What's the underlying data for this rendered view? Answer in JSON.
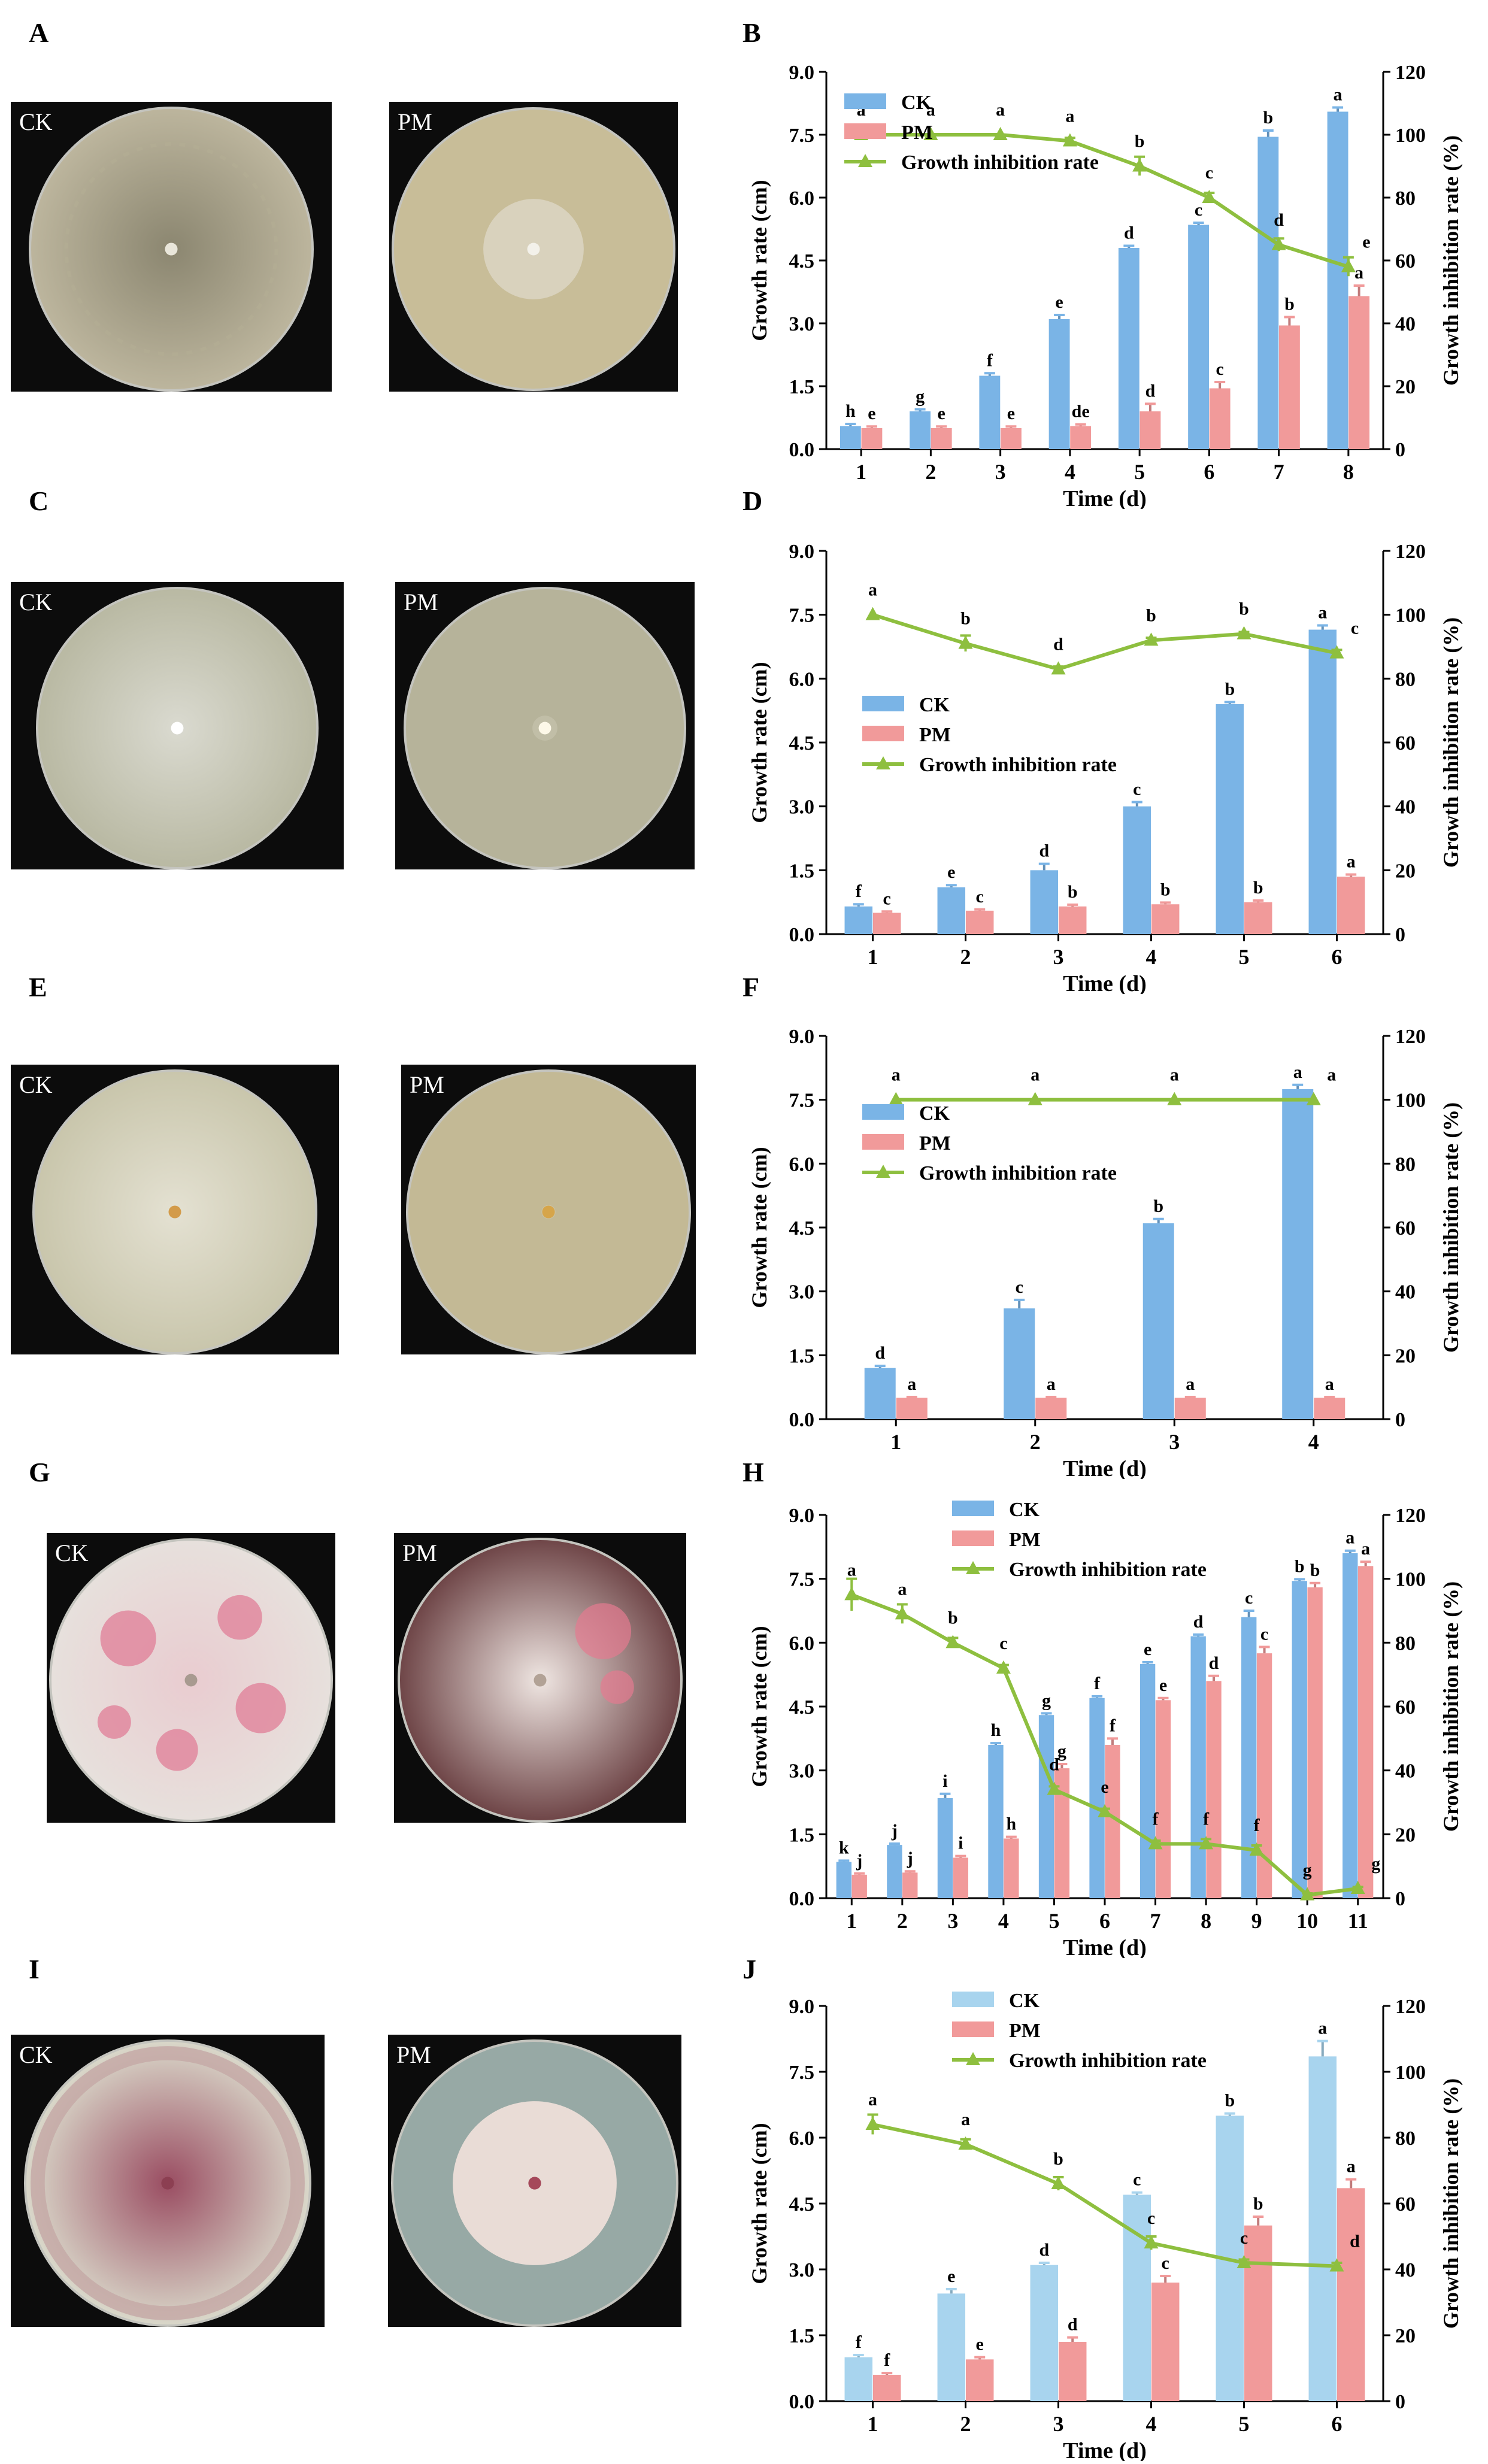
{
  "rows": [
    {
      "photo_letter": "A",
      "chart_letter": "B",
      "ck_label": "CK",
      "pm_label": "PM",
      "ck_colors": {
        "outer": "#bcb59d",
        "inner": "#8b8670",
        "accent": "#b3ad93",
        "center": "#e9e6da"
      },
      "pm_colors": {
        "outer": "#c8bd98",
        "inner": "#d9d2bd",
        "accent": "#c6bc9b",
        "center": "#f3f1ea"
      },
      "pm_colony_fraction": 0.36,
      "legend_pos": "top-left"
    },
    {
      "photo_letter": "C",
      "chart_letter": "D",
      "ck_label": "CK",
      "pm_label": "PM",
      "ck_colors": {
        "outer": "#b9b9a3",
        "inner": "#dadad0",
        "accent": "#c7c7b8",
        "center": "#ffffff"
      },
      "pm_colors": {
        "outer": "#b6b39a",
        "inner": "#c1bea7",
        "accent": "#bbb8a0",
        "center": "#fdf8e8"
      },
      "pm_colony_fraction": 0.09,
      "legend_pos": "middle-left"
    },
    {
      "photo_letter": "E",
      "chart_letter": "F",
      "ck_label": "CK",
      "pm_label": "PM",
      "ck_colors": {
        "outer": "#c9c6ac",
        "inner": "#e4e1d2",
        "accent": "#bdb9a3",
        "center": "#d39b4a"
      },
      "pm_colors": {
        "outer": "#c3b995",
        "inner": "#cbc2a2",
        "accent": "#c7bd9c",
        "center": "#d6a54a"
      },
      "pm_colony_fraction": 0.05,
      "legend_pos": "top-left"
    },
    {
      "photo_letter": "G",
      "chart_letter": "H",
      "ck_label": "CK",
      "pm_label": "PM",
      "ck_colors": {
        "outer": "#e7e0dc",
        "inner": "#e9ccd0",
        "accent": "#e07893",
        "center": "#a89a90"
      },
      "pm_colors": {
        "outer": "#6f4648",
        "inner": "#efe6e2",
        "accent": "#e47b90",
        "center": "#b2a296"
      },
      "pm_colony_fraction": 0.92,
      "legend_pos": "top-center"
    },
    {
      "photo_letter": "I",
      "chart_letter": "J",
      "ck_label": "CK",
      "pm_label": "PM",
      "ck_colors": {
        "outer": "#d9d7c9",
        "inner": "#9a4d62",
        "accent": "#c4a7a5",
        "center": "#8c3f52"
      },
      "pm_colors": {
        "outer": "#97a9a5",
        "inner": "#e9dcd6",
        "accent": "#d4bfbb",
        "center": "#a5485a"
      },
      "pm_colony_fraction": 0.58,
      "legend_pos": "top-center"
    }
  ],
  "chart_data": [
    {
      "id": "B",
      "type": "bar",
      "categories": [
        "1",
        "2",
        "3",
        "4",
        "5",
        "6",
        "7",
        "8"
      ],
      "xlabel": "Time (d)",
      "ylabel": "Growth rate (cm)",
      "y2label": "Growth inhibition rate (%)",
      "ylim": [
        0,
        9
      ],
      "yticks": [
        "0.0",
        "1.5",
        "3.0",
        "4.5",
        "6.0",
        "7.5",
        "9.0"
      ],
      "y2lim": [
        0,
        120
      ],
      "y2ticks": [
        "0",
        "20",
        "40",
        "60",
        "80",
        "100",
        "120"
      ],
      "series": [
        {
          "name": "CK",
          "color": "#7ab4e6",
          "values": [
            0.55,
            0.9,
            1.75,
            3.1,
            4.8,
            5.35,
            7.45,
            8.05
          ],
          "errors": [
            0.05,
            0.05,
            0.06,
            0.1,
            0.05,
            0.05,
            0.15,
            0.1
          ],
          "letters": [
            "h",
            "g",
            "f",
            "e",
            "d",
            "c",
            "b",
            "a"
          ]
        },
        {
          "name": "PM",
          "color": "#f19a9a",
          "values": [
            0.5,
            0.5,
            0.5,
            0.55,
            0.9,
            1.45,
            2.95,
            3.65
          ],
          "errors": [
            0.04,
            0.04,
            0.04,
            0.04,
            0.18,
            0.15,
            0.2,
            0.25
          ],
          "letters": [
            "e",
            "e",
            "e",
            "de",
            "d",
            "c",
            "b",
            "a"
          ]
        }
      ],
      "line": {
        "name": "Growth inhibition rate",
        "color": "#8ebf3f",
        "values": [
          100,
          100,
          100,
          98,
          90,
          80,
          65,
          58
        ],
        "errors": [
          0,
          0,
          0,
          1,
          3,
          1.5,
          2,
          3
        ],
        "letters": [
          "a",
          "a",
          "a",
          "a",
          "b",
          "c",
          "d",
          "e"
        ]
      }
    },
    {
      "id": "D",
      "type": "bar",
      "categories": [
        "1",
        "2",
        "3",
        "4",
        "5",
        "6"
      ],
      "xlabel": "Time (d)",
      "ylabel": "Growth rate (cm)",
      "y2label": "Growth inhibition rate (%)",
      "ylim": [
        0,
        9
      ],
      "yticks": [
        "0.0",
        "1.5",
        "3.0",
        "4.5",
        "6.0",
        "7.5",
        "9.0"
      ],
      "y2lim": [
        0,
        120
      ],
      "y2ticks": [
        "0",
        "20",
        "40",
        "60",
        "80",
        "100",
        "120"
      ],
      "series": [
        {
          "name": "CK",
          "color": "#7ab4e6",
          "values": [
            0.65,
            1.1,
            1.5,
            3.0,
            5.4,
            7.15
          ],
          "errors": [
            0.05,
            0.05,
            0.15,
            0.1,
            0.05,
            0.1
          ],
          "letters": [
            "f",
            "e",
            "d",
            "c",
            "b",
            "a"
          ]
        },
        {
          "name": "PM",
          "color": "#f19a9a",
          "values": [
            0.5,
            0.55,
            0.65,
            0.7,
            0.75,
            1.35
          ],
          "errors": [
            0.03,
            0.03,
            0.04,
            0.04,
            0.04,
            0.05
          ],
          "letters": [
            "c",
            "c",
            "b",
            "b",
            "b",
            "a"
          ]
        }
      ],
      "line": {
        "name": "Growth inhibition rate",
        "color": "#8ebf3f",
        "values": [
          100,
          91,
          83,
          92,
          94,
          88
        ],
        "errors": [
          0,
          2.5,
          0.8,
          0.8,
          0.6,
          1
        ],
        "letters": [
          "a",
          "b",
          "d",
          "b",
          "b",
          "c"
        ]
      }
    },
    {
      "id": "F",
      "type": "bar",
      "categories": [
        "1",
        "2",
        "3",
        "4"
      ],
      "xlabel": "Time (d)",
      "ylabel": "Growth rate (cm)",
      "y2label": "Growth inhibition rate (%)",
      "ylim": [
        0,
        9
      ],
      "yticks": [
        "0.0",
        "1.5",
        "3.0",
        "4.5",
        "6.0",
        "7.5",
        "9.0"
      ],
      "y2lim": [
        0,
        120
      ],
      "y2ticks": [
        "0",
        "20",
        "40",
        "60",
        "80",
        "100",
        "120"
      ],
      "series": [
        {
          "name": "CK",
          "color": "#7ab4e6",
          "values": [
            1.2,
            2.6,
            4.6,
            7.75
          ],
          "errors": [
            0.05,
            0.2,
            0.1,
            0.1
          ],
          "letters": [
            "d",
            "c",
            "b",
            "a"
          ]
        },
        {
          "name": "PM",
          "color": "#f19a9a",
          "values": [
            0.5,
            0.5,
            0.5,
            0.5
          ],
          "errors": [
            0.02,
            0.02,
            0.02,
            0.02
          ],
          "letters": [
            "a",
            "a",
            "a",
            "a"
          ]
        }
      ],
      "line": {
        "name": "Growth inhibition rate",
        "color": "#8ebf3f",
        "values": [
          100,
          100,
          100,
          100
        ],
        "errors": [
          0,
          0,
          0,
          0
        ],
        "letters": [
          "a",
          "a",
          "a",
          "a"
        ]
      }
    },
    {
      "id": "H",
      "type": "bar",
      "categories": [
        "1",
        "2",
        "3",
        "4",
        "5",
        "6",
        "7",
        "8",
        "9",
        "10",
        "11"
      ],
      "xlabel": "Time (d)",
      "ylabel": "Growth rate (cm)",
      "y2label": "Growth inhibition rate (%)",
      "ylim": [
        0,
        9
      ],
      "yticks": [
        "0.0",
        "1.5",
        "3.0",
        "4.5",
        "6.0",
        "7.5",
        "9.0"
      ],
      "y2lim": [
        0,
        120
      ],
      "y2ticks": [
        "0",
        "20",
        "40",
        "60",
        "80",
        "100",
        "120"
      ],
      "series": [
        {
          "name": "CK",
          "color": "#7ab4e6",
          "values": [
            0.85,
            1.25,
            2.35,
            3.6,
            4.3,
            4.7,
            5.5,
            6.15,
            6.6,
            7.45,
            8.1
          ],
          "errors": [
            0.03,
            0.03,
            0.1,
            0.04,
            0.04,
            0.04,
            0.04,
            0.04,
            0.15,
            0.04,
            0.06
          ],
          "letters": [
            "k",
            "j",
            "i",
            "h",
            "g",
            "f",
            "e",
            "d",
            "c",
            "b",
            "a"
          ]
        },
        {
          "name": "PM",
          "color": "#f19a9a",
          "values": [
            0.55,
            0.6,
            0.95,
            1.4,
            3.05,
            3.6,
            4.65,
            5.1,
            5.75,
            7.3,
            7.8
          ],
          "errors": [
            0.03,
            0.03,
            0.04,
            0.04,
            0.1,
            0.15,
            0.05,
            0.12,
            0.15,
            0.1,
            0.1
          ],
          "letters": [
            "j",
            "j",
            "i",
            "h",
            "g",
            "f",
            "e",
            "d",
            "c",
            "b",
            "a"
          ]
        }
      ],
      "line": {
        "name": "Growth inhibition rate",
        "color": "#8ebf3f",
        "values": [
          95,
          89,
          80,
          72,
          34,
          27,
          17,
          17,
          15,
          1,
          3
        ],
        "errors": [
          5,
          3,
          1.5,
          1,
          1,
          1,
          1,
          1.5,
          1.5,
          0.5,
          0.5
        ],
        "letters": [
          "a",
          "a",
          "b",
          "c",
          "d",
          "e",
          "f",
          "f",
          "f",
          "g",
          "g"
        ]
      }
    },
    {
      "id": "J",
      "type": "bar",
      "categories": [
        "1",
        "2",
        "3",
        "4",
        "5",
        "6"
      ],
      "xlabel": "Time (d)",
      "ylabel": "Growth rate (cm)",
      "y2label": "Growth inhibition rate (%)",
      "ylim": [
        0,
        9
      ],
      "yticks": [
        "0.0",
        "1.5",
        "3.0",
        "4.5",
        "6.0",
        "7.5",
        "9.0"
      ],
      "y2lim": [
        0,
        120
      ],
      "y2ticks": [
        "0",
        "20",
        "40",
        "60",
        "80",
        "100",
        "120"
      ],
      "series": [
        {
          "name": "CK",
          "color": "#a8d4ee",
          "values": [
            1.0,
            2.45,
            3.1,
            4.7,
            6.5,
            7.85
          ],
          "errors": [
            0.05,
            0.1,
            0.05,
            0.05,
            0.05,
            0.35
          ],
          "letters": [
            "f",
            "e",
            "d",
            "c",
            "b",
            "a"
          ]
        },
        {
          "name": "PM",
          "color": "#f19a9a",
          "values": [
            0.6,
            0.95,
            1.35,
            2.7,
            4.0,
            4.85
          ],
          "errors": [
            0.04,
            0.05,
            0.1,
            0.15,
            0.2,
            0.2
          ],
          "letters": [
            "f",
            "e",
            "d",
            "c",
            "b",
            "a"
          ]
        }
      ],
      "line": {
        "name": "Growth inhibition rate",
        "color": "#8ebf3f",
        "values": [
          84,
          78,
          66,
          48,
          42,
          41
        ],
        "errors": [
          3,
          1.5,
          2,
          2,
          1,
          1
        ],
        "letters": [
          "a",
          "a",
          "b",
          "c",
          "c",
          "d"
        ]
      }
    }
  ]
}
